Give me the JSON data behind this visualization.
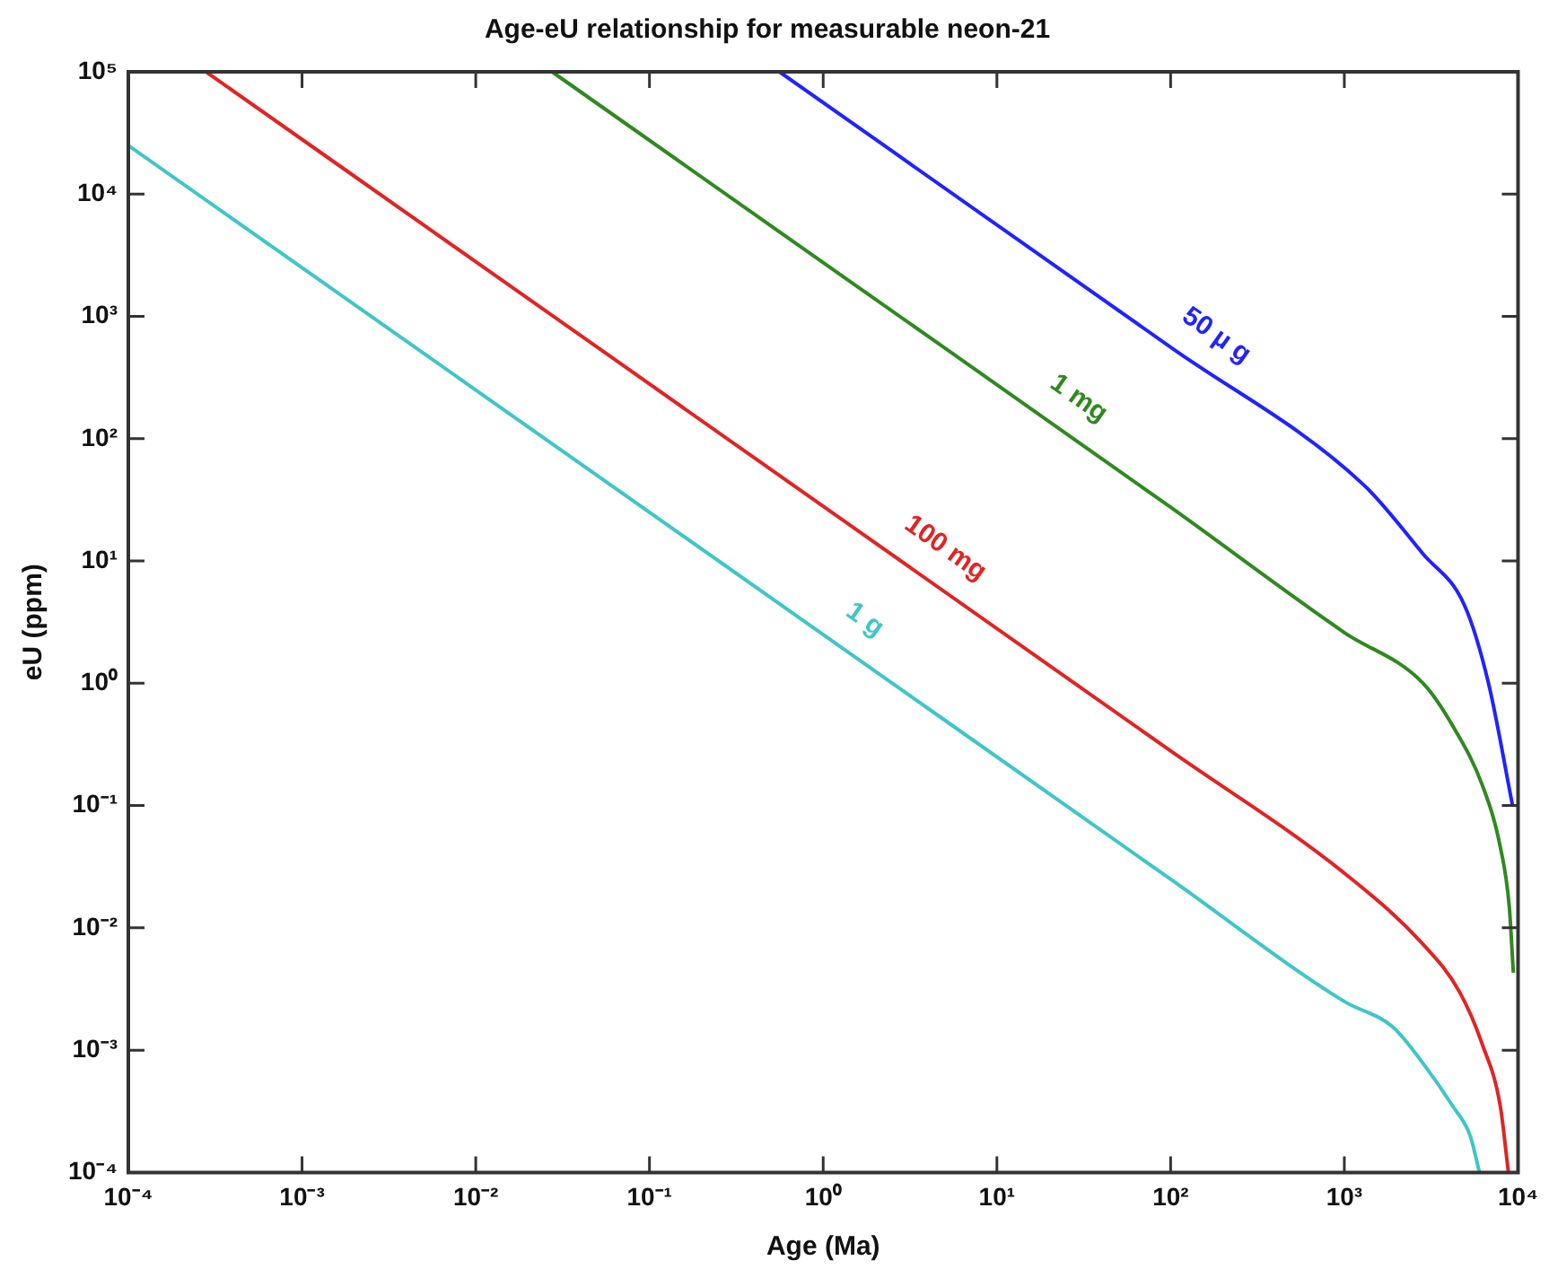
{
  "chart_data": {
    "type": "line",
    "title": "Age-eU relationship for measurable neon-21",
    "xlabel": "Age (Ma)",
    "ylabel": "eU (ppm)",
    "log": "xy",
    "grid": false,
    "legend": false,
    "marker": "none",
    "line_style": "solid",
    "xlim": [
      0.0001,
      10000
    ],
    "ylim": [
      0.0001,
      100000
    ],
    "xticks": [
      {
        "value": 0.0001,
        "label": "10⁻⁴"
      },
      {
        "value": 0.001,
        "label": "10⁻³"
      },
      {
        "value": 0.01,
        "label": "10⁻²"
      },
      {
        "value": 0.1,
        "label": "10⁻¹"
      },
      {
        "value": 1,
        "label": "10⁰"
      },
      {
        "value": 10,
        "label": "10¹"
      },
      {
        "value": 100,
        "label": "10²"
      },
      {
        "value": 1000,
        "label": "10³"
      },
      {
        "value": 10000,
        "label": "10⁴"
      }
    ],
    "yticks": [
      {
        "value": 0.0001,
        "label": "10⁻⁴"
      },
      {
        "value": 0.001,
        "label": "10⁻³"
      },
      {
        "value": 0.01,
        "label": "10⁻²"
      },
      {
        "value": 0.1,
        "label": "10⁻¹"
      },
      {
        "value": 1,
        "label": "10⁰"
      },
      {
        "value": 10,
        "label": "10¹"
      },
      {
        "value": 100,
        "label": "10²"
      },
      {
        "value": 1000,
        "label": "10³"
      },
      {
        "value": 10000,
        "label": "10⁴"
      },
      {
        "value": 100000,
        "label": "10⁵"
      }
    ],
    "series": [
      {
        "name": "50 µ g",
        "color": "#2222ff",
        "x": [
          0.56,
          10,
          100,
          1290,
          2840,
          4930,
          6760,
          9300
        ],
        "values": [
          100000,
          5600,
          560,
          42,
          11.4,
          4.3,
          1.0,
          0.1
        ]
      },
      {
        "name": "1 mg",
        "color": "#2e8a1e",
        "x": [
          0.0275,
          1,
          100,
          1000,
          2840,
          4200,
          6250,
          7900,
          8900,
          9400
        ],
        "values": [
          100000,
          2750,
          27.5,
          2.6,
          1.0,
          0.45,
          0.145,
          0.046,
          0.015,
          0.0043
        ]
      },
      {
        "name": "100 mg",
        "color": "#e02424",
        "x": [
          0.00028,
          0.01,
          1,
          100,
          1000,
          2800,
          4600,
          6250,
          7900,
          8800
        ],
        "values": [
          100000,
          2800,
          28,
          0.28,
          0.028,
          0.0075,
          0.003,
          0.0011,
          0.00035,
          0.0001
        ]
      },
      {
        "name": "1 g",
        "color": "#3ec6c8",
        "x": [
          0.0001,
          0.01,
          1,
          100,
          1000,
          1900,
          2840,
          4200,
          5300,
          6000
        ],
        "values": [
          25000,
          250,
          2.5,
          0.025,
          0.0025,
          0.00155,
          0.00078,
          0.00035,
          0.0002,
          0.0001
        ]
      }
    ]
  }
}
